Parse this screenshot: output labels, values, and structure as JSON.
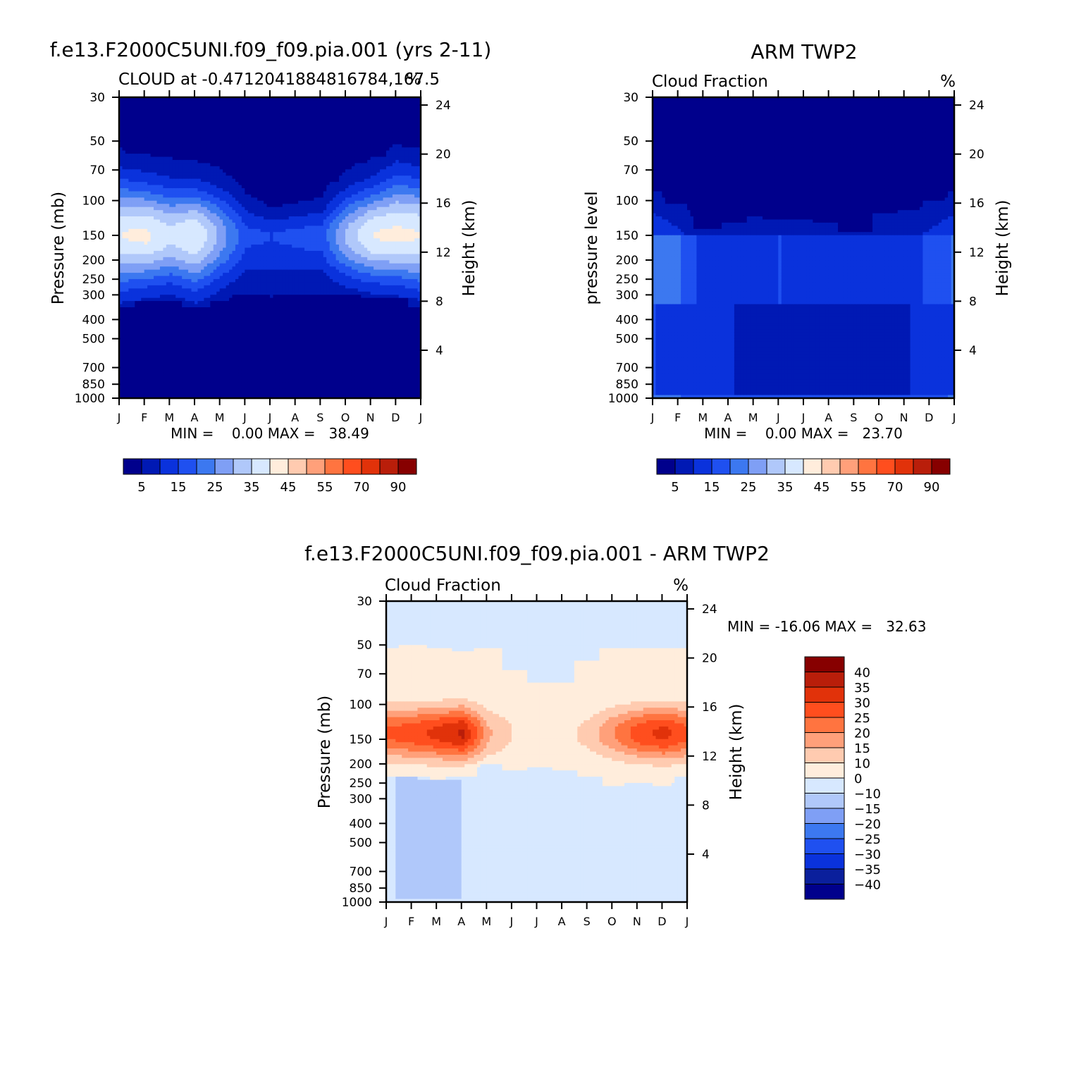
{
  "palettes": {
    "abs": [
      "#00008c",
      "#0019b4",
      "#0a32dc",
      "#1f50f0",
      "#3c78f0",
      "#7f9ff5",
      "#b0c8fa",
      "#d7e8ff",
      "#ffeddc",
      "#ffcbb0",
      "#ffa07a",
      "#ff7440",
      "#ff4e1e",
      "#e1320a",
      "#b91e0a",
      "#870000"
    ],
    "diff": [
      "#00008c",
      "#0a1f9c",
      "#0a32dc",
      "#1f50f0",
      "#3c78f0",
      "#7f9ff5",
      "#b0c8fa",
      "#d7e8ff",
      "#ffeddc",
      "#ffcbb0",
      "#ffa07a",
      "#ff7440",
      "#ff4e1e",
      "#e1320a",
      "#b91e0a",
      "#870000"
    ]
  },
  "chart_data": [
    {
      "type": "heatmap",
      "id": "model",
      "suptitle": "f.e13.F2000C5UNI.f09_f09.pia.001 (yrs 2-11)",
      "left_title": "CLOUD at -0.4712041884816784,167.5",
      "right_title": "%",
      "ylabel": "Pressure (mb)",
      "ylabel_right": "Height (km)",
      "x_ticks": [
        "J",
        "F",
        "M",
        "A",
        "M",
        "J",
        "J",
        "A",
        "S",
        "O",
        "N",
        "D",
        "J"
      ],
      "y_ticks": [
        "30",
        "50",
        "70",
        "100",
        "150",
        "200",
        "250",
        "300",
        "400",
        "500",
        "700",
        "850",
        "1000"
      ],
      "y_ticks_right": [
        "24",
        "20",
        "16",
        "12",
        "8",
        "4"
      ],
      "ylim": [
        30,
        1000
      ],
      "stats": "MIN =    0.00 MAX =   38.49",
      "colorbar_labels": [
        "5",
        "15",
        "25",
        "35",
        "45",
        "55",
        "70",
        "90"
      ],
      "columns_months": 13,
      "profiles": [
        {
          "p150": 37,
          "p100": 28,
          "p200": 25,
          "cloudtop": 68,
          "cloudbase": 330
        },
        {
          "p150": 38,
          "p100": 30,
          "p200": 26,
          "cloudtop": 72,
          "cloudbase": 310
        },
        {
          "p150": 33,
          "p100": 28,
          "p200": 22,
          "cloudtop": 75,
          "cloudbase": 305
        },
        {
          "p150": 37,
          "p100": 27,
          "p200": 24,
          "cloudtop": 78,
          "cloudbase": 330
        },
        {
          "p150": 25,
          "p100": 15,
          "p200": 15,
          "cloudtop": 80,
          "cloudbase": 305
        },
        {
          "p150": 13,
          "p100": 9,
          "p200": 11,
          "cloudtop": 95,
          "cloudbase": 285
        },
        {
          "p150": 12,
          "p100": 6,
          "p200": 11,
          "cloudtop": 110,
          "cloudbase": 300
        },
        {
          "p150": 13,
          "p100": 7,
          "p200": 12,
          "cloudtop": 105,
          "cloudbase": 285
        },
        {
          "p150": 14,
          "p100": 8,
          "p200": 12,
          "cloudtop": 100,
          "cloudbase": 285
        },
        {
          "p150": 28,
          "p100": 20,
          "p200": 20,
          "cloudtop": 82,
          "cloudbase": 290
        },
        {
          "p150": 37,
          "p100": 30,
          "p200": 25,
          "cloudtop": 76,
          "cloudbase": 295
        },
        {
          "p150": 38,
          "p100": 32,
          "p200": 26,
          "cloudtop": 64,
          "cloudbase": 300
        },
        {
          "p150": 37,
          "p100": 28,
          "p200": 25,
          "cloudtop": 68,
          "cloudbase": 330
        }
      ]
    },
    {
      "type": "heatmap",
      "id": "obs",
      "suptitle": "ARM TWP2",
      "left_title": "Cloud Fraction",
      "right_title": "%",
      "ylabel": "pressure level",
      "ylabel_right": "Height (km)",
      "x_ticks": [
        "J",
        "F",
        "M",
        "A",
        "M",
        "J",
        "J",
        "A",
        "S",
        "O",
        "N",
        "D",
        "J"
      ],
      "y_ticks": [
        "30",
        "50",
        "70",
        "100",
        "150",
        "200",
        "250",
        "300",
        "400",
        "500",
        "700",
        "850",
        "1000"
      ],
      "y_ticks_right": [
        "24",
        "20",
        "16",
        "12",
        "8",
        "4"
      ],
      "ylim": [
        30,
        1000
      ],
      "stats": "MIN =    0.00 MAX =   23.70",
      "colorbar_labels": [
        "5",
        "15",
        "25",
        "35",
        "45",
        "55",
        "70",
        "90"
      ],
      "columns_months": 13,
      "profiles": [
        {
          "upper": 15,
          "mid": 21,
          "low": 15,
          "cloudtop": 90
        },
        {
          "upper": 13,
          "mid": 20,
          "low": 14,
          "cloudtop": 105
        },
        {
          "upper": 10,
          "mid": 13,
          "low": 12,
          "cloudtop": 140
        },
        {
          "upper": 10,
          "mid": 12,
          "low": 11,
          "cloudtop": 130
        },
        {
          "upper": 9,
          "mid": 11,
          "low": 6,
          "cloudtop": 120
        },
        {
          "upper": 9,
          "mid": 15,
          "low": 8,
          "cloudtop": 125
        },
        {
          "upper": 9,
          "mid": 14,
          "low": 8,
          "cloudtop": 125
        },
        {
          "upper": 9,
          "mid": 13,
          "low": 8,
          "cloudtop": 130
        },
        {
          "upper": 8,
          "mid": 11,
          "low": 7,
          "cloudtop": 145
        },
        {
          "upper": 8,
          "mid": 11,
          "low": 5,
          "cloudtop": 118
        },
        {
          "upper": 10,
          "mid": 13,
          "low": 9,
          "cloudtop": 110
        },
        {
          "upper": 12,
          "mid": 16,
          "low": 13,
          "cloudtop": 100
        },
        {
          "upper": 15,
          "mid": 21,
          "low": 15,
          "cloudtop": 90
        }
      ]
    },
    {
      "type": "heatmap",
      "id": "diff",
      "suptitle": "f.e13.F2000C5UNI.f09_f09.pia.001 - ARM TWP2",
      "left_title": "Cloud Fraction",
      "right_title": "%",
      "ylabel": "Pressure (mb)",
      "ylabel_right": "Height (km)",
      "x_ticks": [
        "J",
        "F",
        "M",
        "A",
        "M",
        "J",
        "J",
        "A",
        "S",
        "O",
        "N",
        "D",
        "J"
      ],
      "y_ticks": [
        "30",
        "50",
        "70",
        "100",
        "150",
        "200",
        "250",
        "300",
        "400",
        "500",
        "700",
        "850",
        "1000"
      ],
      "y_ticks_right": [
        "24",
        "20",
        "16",
        "12",
        "8",
        "4"
      ],
      "ylim": [
        30,
        1000
      ],
      "stats": "MIN = -16.06 MAX =   32.63",
      "colorbar_labels": [
        "40",
        "35",
        "30",
        "25",
        "20",
        "15",
        "10",
        "0",
        "-10",
        "-15",
        "-20",
        "-25",
        "-30",
        "-35",
        "-40"
      ],
      "columns_months": 13,
      "profiles": [
        {
          "peak": 22,
          "warmtop": 52,
          "warmbase": 230,
          "low": -8
        },
        {
          "peak": 24,
          "warmtop": 50,
          "warmbase": 235,
          "low": -15
        },
        {
          "peak": 28,
          "warmtop": 52,
          "warmbase": 240,
          "low": -12
        },
        {
          "peak": 32,
          "warmtop": 54,
          "warmbase": 230,
          "low": -10
        },
        {
          "peak": 12,
          "warmtop": 52,
          "warmbase": 200,
          "low": -6
        },
        {
          "peak": 6,
          "warmtop": 68,
          "warmbase": 215,
          "low": -5
        },
        {
          "peak": 4,
          "warmtop": 78,
          "warmbase": 210,
          "low": -5
        },
        {
          "peak": 4,
          "warmtop": 78,
          "warmbase": 215,
          "low": -7
        },
        {
          "peak": 8,
          "warmtop": 60,
          "warmbase": 230,
          "low": -5
        },
        {
          "peak": 16,
          "warmtop": 52,
          "warmbase": 260,
          "low": -5
        },
        {
          "peak": 24,
          "warmtop": 51,
          "warmbase": 250,
          "low": -6
        },
        {
          "peak": 28,
          "warmtop": 51,
          "warmbase": 260,
          "low": -10
        },
        {
          "peak": 22,
          "warmtop": 52,
          "warmbase": 230,
          "low": -8
        }
      ]
    }
  ]
}
